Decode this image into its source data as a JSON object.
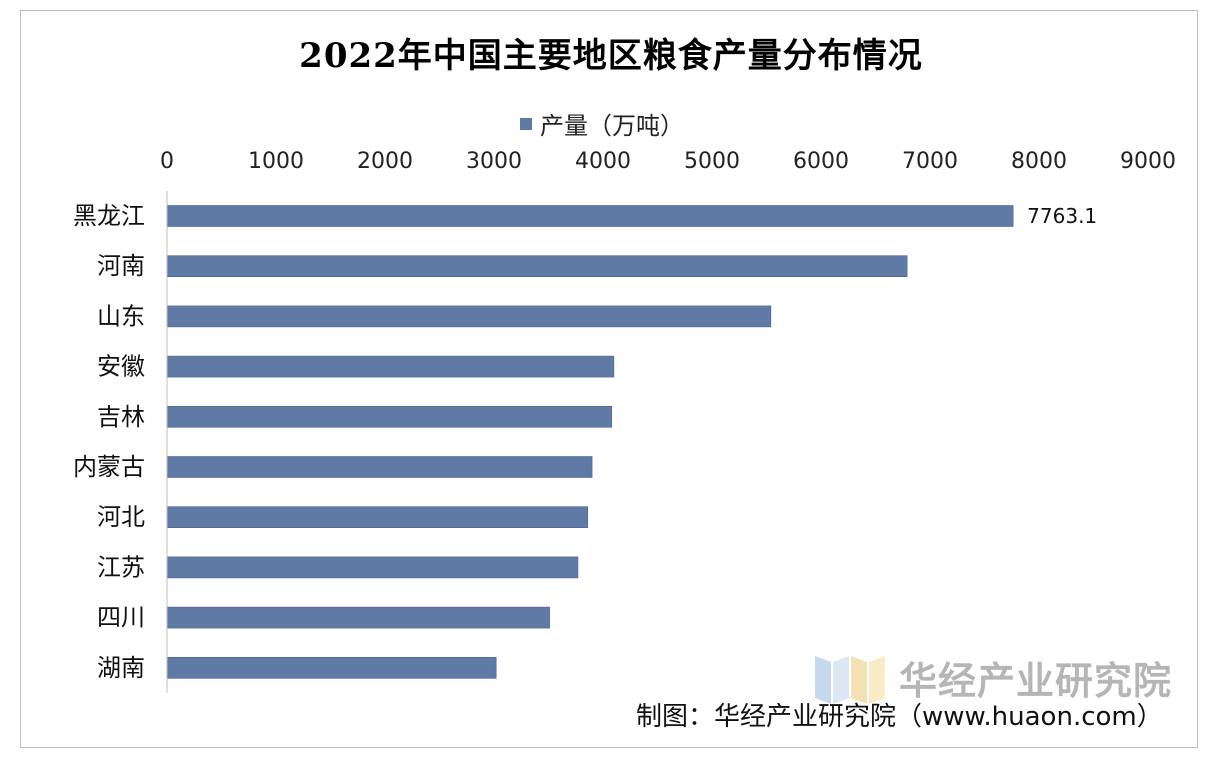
{
  "chart_data": {
    "type": "bar",
    "orientation": "horizontal",
    "title": "2022年中国主要地区粮食产量分布情况",
    "legend": [
      "产量（万吨）"
    ],
    "legend_position": "top",
    "categories": [
      "黑龙江",
      "河南",
      "山东",
      "安徽",
      "吉林",
      "内蒙古",
      "河北",
      "江苏",
      "四川",
      "湖南"
    ],
    "series": [
      {
        "name": "产量（万吨）",
        "values": [
          7763.1,
          6790,
          5540,
          4100,
          4080,
          3900,
          3860,
          3770,
          3510,
          3020
        ]
      }
    ],
    "data_labels": [
      {
        "index": 0,
        "text": "7763.1"
      }
    ],
    "xlim": [
      0,
      9000
    ],
    "xticks": [
      "0",
      "1000",
      "2000",
      "3000",
      "4000",
      "5000",
      "6000",
      "7000",
      "8000",
      "9000"
    ],
    "xaxis_position": "top",
    "grid": false,
    "bar_color": "#5f7aa5"
  },
  "watermark": "华经产业研究院",
  "source_note": "制图：华经产业研究院（www.huaon.com）"
}
